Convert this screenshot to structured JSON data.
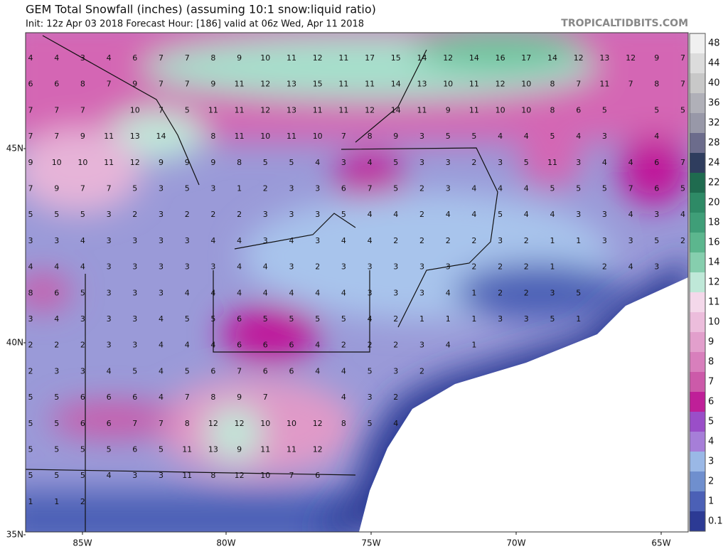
{
  "header": {
    "title": "GEM Total Snowfall (inches) (assuming 10:1 snow:liquid ratio)",
    "subtitle": "Init: 12z Apr 03 2018   Forecast Hour: [186]   valid at 06z Wed, Apr 11 2018",
    "watermark": "TROPICALTIDBITS.COM"
  },
  "map": {
    "lat_labels": [
      "45N",
      "40N",
      "35N"
    ],
    "lon_labels": [
      "85W",
      "80W",
      "75W",
      "70W",
      "65W"
    ],
    "grid_values": [
      [
        4,
        4,
        3,
        4,
        6,
        7,
        7,
        8,
        9,
        10,
        11,
        12,
        11,
        17,
        15,
        14,
        12,
        14,
        16,
        17,
        14,
        12,
        13,
        12,
        9,
        7
      ],
      [
        6,
        6,
        8,
        7,
        9,
        7,
        7,
        9,
        11,
        12,
        13,
        15,
        11,
        11,
        14,
        13,
        10,
        11,
        12,
        10,
        8,
        7,
        11,
        7,
        8,
        7
      ],
      [
        7,
        7,
        7,
        null,
        10,
        7,
        5,
        11,
        11,
        12,
        13,
        11,
        11,
        12,
        14,
        11,
        9,
        11,
        10,
        10,
        8,
        6,
        5,
        null,
        5,
        5
      ],
      [
        7,
        7,
        9,
        11,
        13,
        14,
        null,
        8,
        11,
        10,
        11,
        10,
        7,
        8,
        9,
        3,
        5,
        5,
        4,
        4,
        5,
        4,
        3,
        null,
        4,
        null
      ],
      [
        9,
        10,
        10,
        11,
        12,
        9,
        9,
        9,
        8,
        5,
        5,
        4,
        3,
        4,
        5,
        3,
        3,
        2,
        3,
        5,
        11,
        3,
        4,
        4,
        6,
        7
      ],
      [
        7,
        9,
        7,
        7,
        5,
        3,
        5,
        3,
        1,
        2,
        3,
        3,
        6,
        7,
        5,
        2,
        3,
        4,
        4,
        4,
        5,
        5,
        5,
        7,
        6,
        5
      ],
      [
        5,
        5,
        5,
        3,
        2,
        3,
        2,
        2,
        2,
        3,
        3,
        3,
        5,
        4,
        4,
        2,
        4,
        4,
        5,
        4,
        4,
        3,
        3,
        4,
        3,
        4
      ],
      [
        3,
        3,
        4,
        3,
        3,
        3,
        3,
        4,
        4,
        3,
        4,
        3,
        4,
        4,
        2,
        2,
        2,
        2,
        3,
        2,
        1,
        1,
        3,
        3,
        5,
        2
      ],
      [
        4,
        4,
        4,
        3,
        3,
        3,
        3,
        3,
        4,
        4,
        3,
        2,
        3,
        3,
        3,
        3,
        3,
        2,
        2,
        2,
        1,
        null,
        2,
        4,
        3,
        null
      ],
      [
        8,
        6,
        5,
        3,
        3,
        3,
        4,
        4,
        4,
        4,
        4,
        4,
        4,
        3,
        3,
        3,
        4,
        1,
        2,
        2,
        3,
        5,
        null,
        null,
        null,
        null
      ],
      [
        3,
        4,
        3,
        3,
        3,
        4,
        5,
        5,
        6,
        5,
        5,
        5,
        5,
        4,
        2,
        1,
        1,
        1,
        3,
        3,
        5,
        1,
        null,
        null,
        null,
        null
      ],
      [
        2,
        2,
        2,
        3,
        3,
        4,
        4,
        4,
        6,
        6,
        6,
        4,
        2,
        2,
        2,
        3,
        4,
        1,
        null,
        null,
        null,
        null,
        null,
        null,
        null,
        null
      ],
      [
        2,
        3,
        3,
        4,
        5,
        4,
        5,
        6,
        7,
        6,
        6,
        4,
        4,
        5,
        3,
        2,
        null,
        null,
        null,
        null,
        null,
        null,
        null,
        null,
        null,
        null
      ],
      [
        5,
        5,
        6,
        6,
        6,
        4,
        7,
        8,
        9,
        7,
        null,
        null,
        4,
        3,
        2,
        null,
        null,
        null,
        null,
        null,
        null,
        null,
        null,
        null,
        null,
        null
      ],
      [
        5,
        5,
        6,
        6,
        7,
        7,
        8,
        12,
        12,
        10,
        10,
        12,
        8,
        5,
        4,
        null,
        null,
        null,
        null,
        null,
        null,
        null,
        null,
        null,
        null,
        null
      ],
      [
        5,
        5,
        5,
        5,
        6,
        5,
        11,
        13,
        9,
        11,
        11,
        12,
        null,
        null,
        null,
        null,
        null,
        null,
        null,
        null,
        null,
        null,
        null,
        null,
        null,
        null
      ],
      [
        5,
        5,
        5,
        4,
        3,
        3,
        11,
        8,
        12,
        10,
        7,
        6,
        null,
        null,
        null,
        null,
        null,
        null,
        null,
        null,
        null,
        null,
        null,
        null,
        null,
        null
      ],
      [
        1,
        1,
        2,
        null,
        null,
        null,
        null,
        null,
        null,
        null,
        null,
        null,
        null,
        null,
        null,
        null,
        null,
        null,
        null,
        null,
        null,
        null,
        null,
        null,
        null,
        null
      ]
    ]
  },
  "colorbar": {
    "labels": [
      48,
      44,
      40,
      36,
      32,
      28,
      24,
      22,
      20,
      18,
      16,
      14,
      12,
      11,
      10,
      9,
      8,
      7,
      6,
      5,
      4,
      3,
      2,
      1,
      0.1
    ],
    "colors": [
      "#f0f0f0",
      "#dcdcdc",
      "#c8c8c8",
      "#b0b0b8",
      "#9898a8",
      "#6c6c8c",
      "#2f3d5e",
      "#1f6b4f",
      "#2e8a66",
      "#3f9e78",
      "#5cb68e",
      "#86ceae",
      "#bfe8d8",
      "#f4d8ea",
      "#ecbddc",
      "#e29fcc",
      "#d87fbc",
      "#cc5aa9",
      "#bf1f98",
      "#9a4ec8",
      "#a67ed8",
      "#9ab8e6",
      "#6f8fce",
      "#4b60b6",
      "#2c3a94"
    ]
  }
}
